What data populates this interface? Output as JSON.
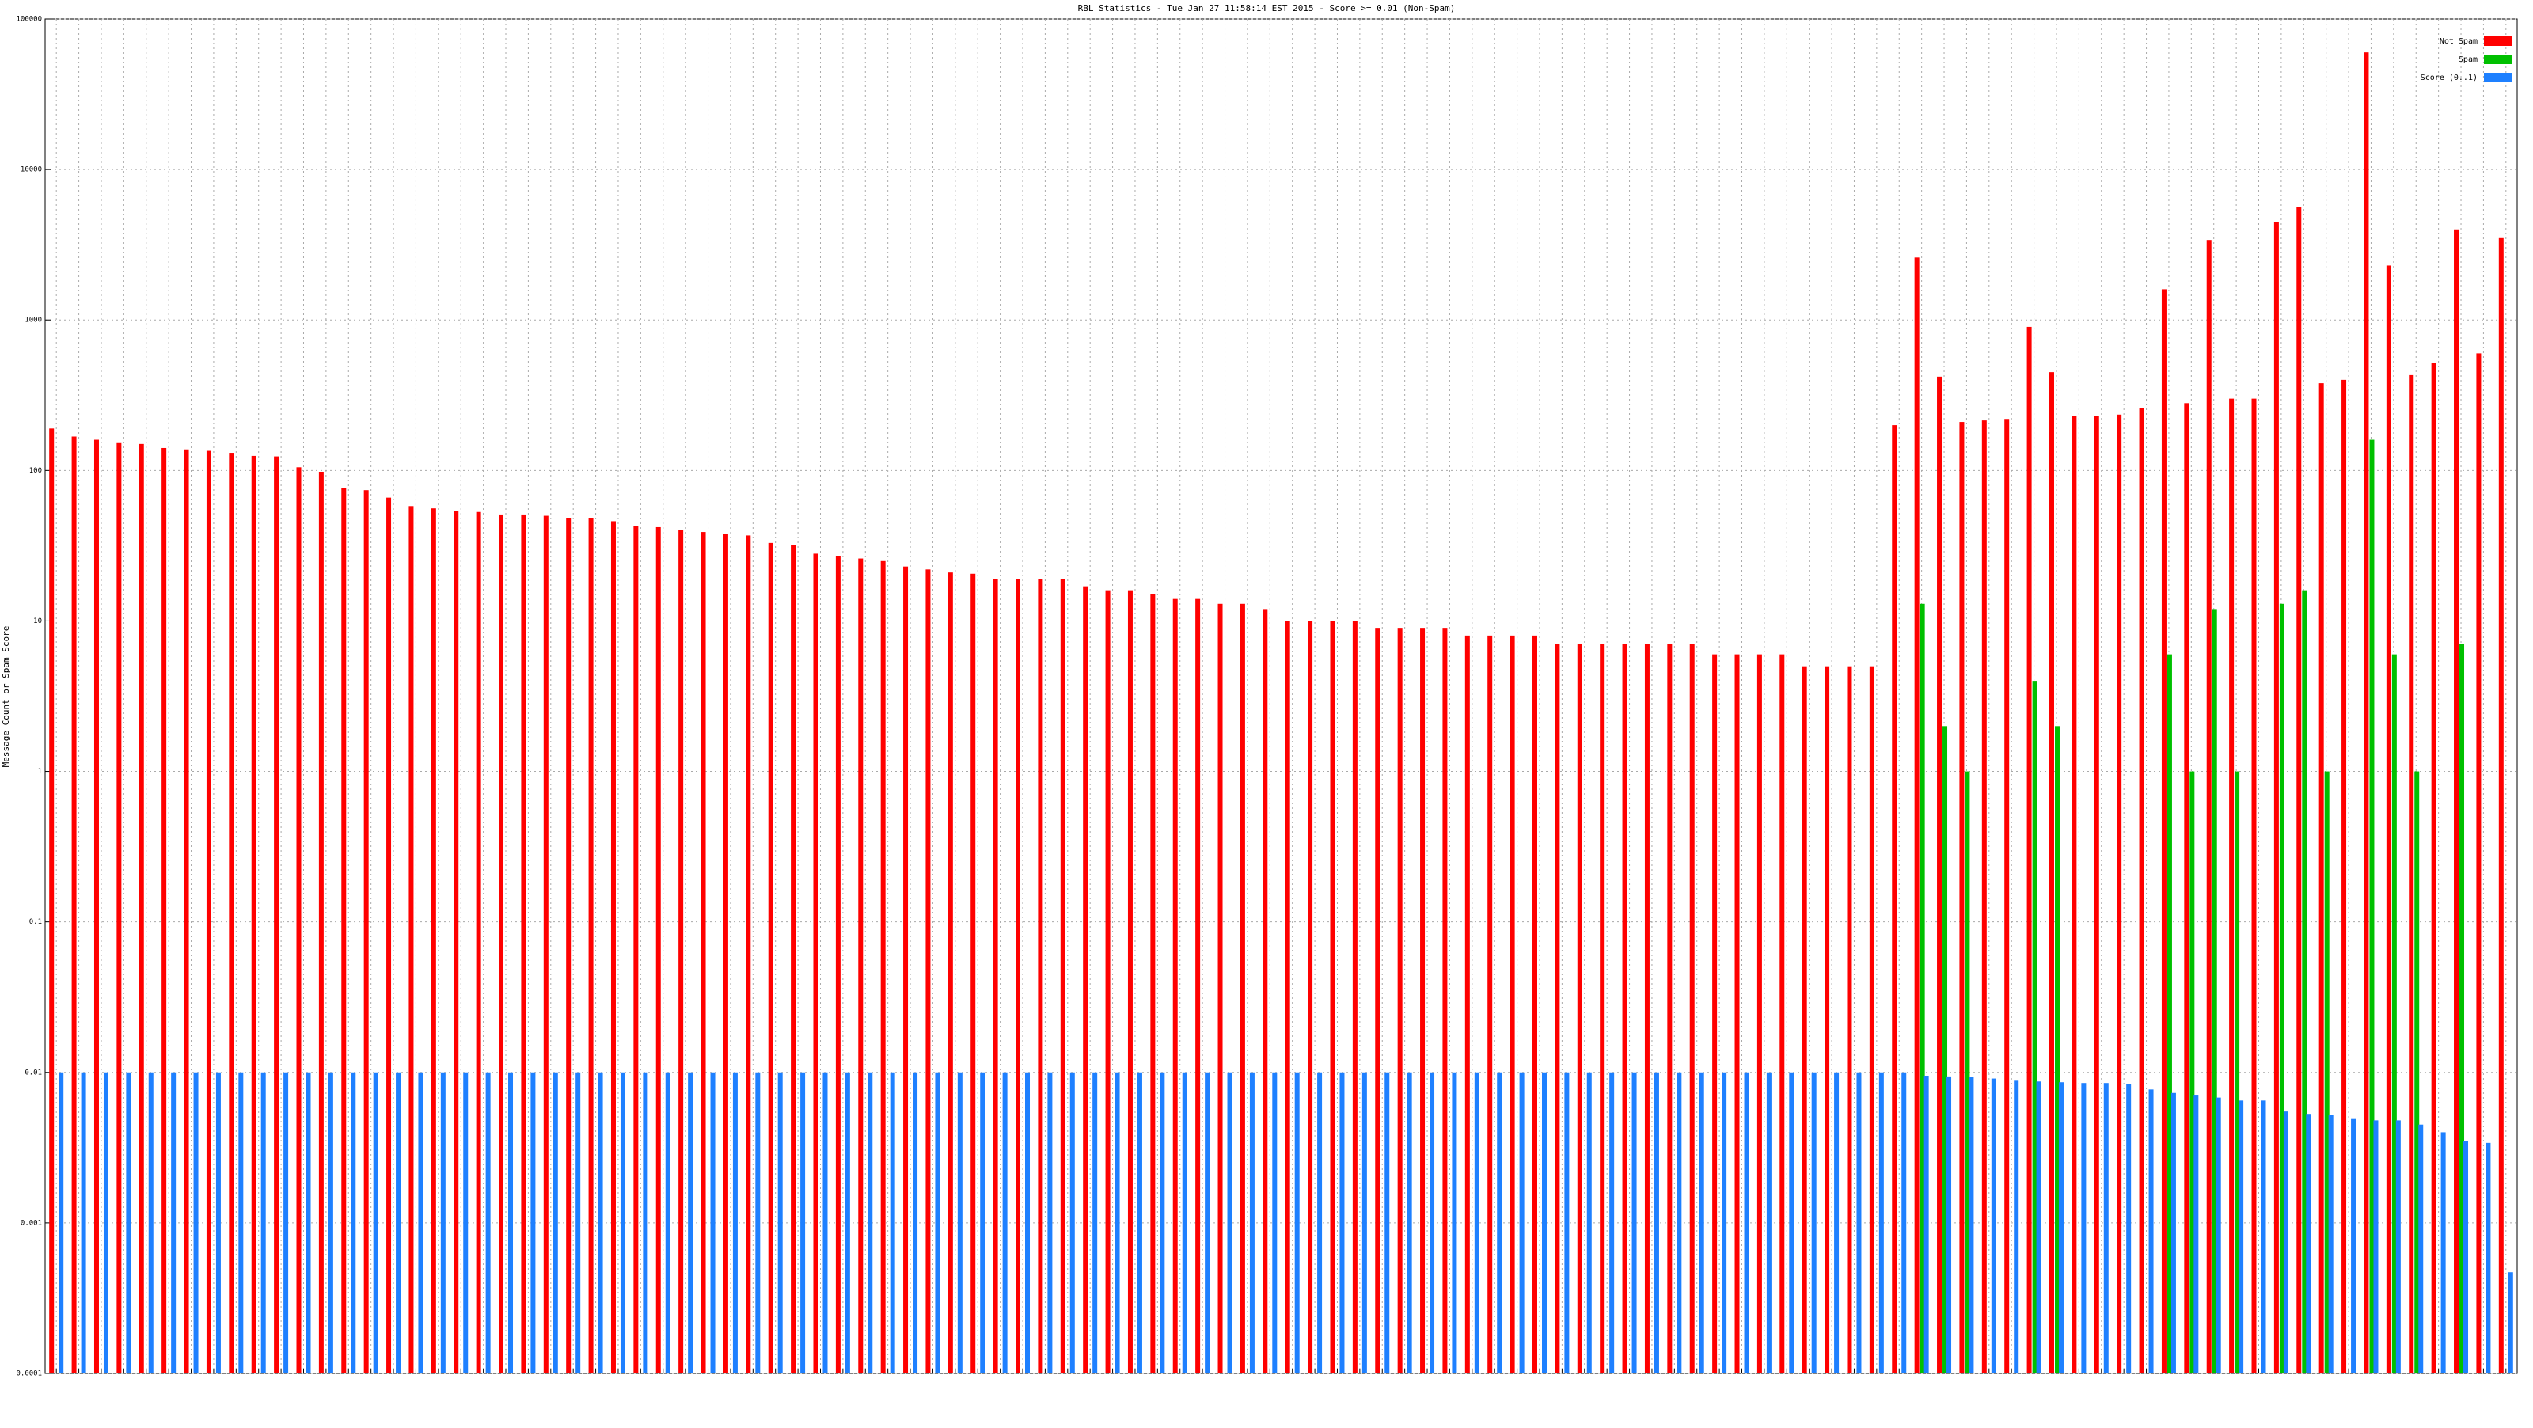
{
  "chart_data": {
    "type": "bar",
    "title": "RBL Statistics - Tue Jan 27 11:58:14 EST 2015 - Score >= 0.01 (Non-Spam)",
    "y_label": "Message Count or Spam Score",
    "log_scale": true,
    "grid": true,
    "legend": "top-right",
    "ylim": [
      0.0001,
      100000
    ],
    "yticks": [
      0.0001,
      0.001,
      0.01,
      0.1,
      1,
      10,
      100,
      1000,
      10000,
      100000
    ],
    "categories": [
      null,
      null,
      null,
      null,
      null,
      null,
      null,
      null,
      null,
      null,
      null,
      null,
      null,
      null,
      null,
      null,
      null,
      null,
      null,
      null,
      null,
      null,
      null,
      null,
      null,
      null,
      null,
      null,
      null,
      null,
      null,
      null,
      null,
      null,
      null,
      null,
      null,
      null,
      null,
      null,
      null,
      null,
      null,
      null,
      null,
      null,
      null,
      null,
      null,
      null,
      null,
      null,
      null,
      null,
      null,
      null,
      null,
      null,
      null,
      null,
      null,
      null,
      null,
      null,
      null,
      null,
      null,
      null,
      null,
      null,
      null,
      null,
      null,
      null,
      null,
      null,
      null,
      null,
      null,
      null,
      null,
      null,
      null,
      null,
      null,
      null,
      null,
      null,
      null,
      null,
      null,
      null,
      null,
      null,
      null,
      null,
      null,
      null,
      null,
      null,
      null,
      null,
      null,
      null,
      null,
      null,
      null,
      null,
      null,
      null
    ],
    "series": [
      {
        "name": "Not Spam",
        "color": "#ff0000",
        "values": [
          190,
          168,
          160,
          152,
          150,
          141,
          138,
          135,
          131,
          125,
          124,
          105,
          98,
          76,
          74,
          66,
          58,
          56,
          54,
          53,
          51,
          51,
          50,
          48,
          48,
          46,
          43,
          42,
          40,
          39,
          38,
          37,
          33,
          32,
          28,
          27,
          26,
          25,
          23,
          22,
          21,
          20.6,
          19,
          19,
          19,
          19,
          17,
          16,
          16,
          15,
          14,
          14,
          13,
          13,
          12,
          10,
          10,
          10,
          10,
          9,
          9,
          9,
          9,
          8,
          8,
          8,
          8,
          7,
          7,
          7,
          7,
          7,
          7,
          7,
          6,
          6,
          6,
          6,
          5,
          5,
          5,
          5,
          200,
          2600,
          420,
          210,
          215,
          220,
          900,
          450,
          230,
          230,
          235,
          260,
          1600,
          280,
          3400,
          300,
          300,
          4500,
          5600,
          380,
          400,
          60000,
          2300,
          430,
          520,
          4000,
          600,
          3500
        ]
      },
      {
        "name": "Spam",
        "color": "#00c000",
        "values": [
          null,
          null,
          null,
          null,
          null,
          null,
          null,
          null,
          null,
          null,
          null,
          null,
          null,
          null,
          null,
          null,
          null,
          null,
          null,
          null,
          null,
          null,
          null,
          null,
          null,
          null,
          null,
          null,
          null,
          null,
          null,
          null,
          null,
          null,
          null,
          null,
          null,
          null,
          null,
          null,
          null,
          null,
          null,
          null,
          null,
          null,
          null,
          null,
          null,
          null,
          null,
          null,
          null,
          null,
          null,
          null,
          null,
          null,
          null,
          null,
          null,
          null,
          null,
          null,
          null,
          null,
          null,
          null,
          null,
          null,
          null,
          null,
          null,
          null,
          null,
          null,
          null,
          null,
          null,
          null,
          null,
          null,
          null,
          13,
          2,
          1,
          null,
          null,
          4,
          2,
          null,
          null,
          null,
          null,
          6,
          1,
          12,
          1,
          null,
          13,
          16,
          1,
          null,
          160,
          6,
          1,
          null,
          7,
          null,
          null
        ]
      },
      {
        "name": "Score (0..1)",
        "color": "#1e80ff",
        "values": [
          0.01,
          0.01,
          0.01,
          0.01,
          0.01,
          0.01,
          0.01,
          0.01,
          0.01,
          0.01,
          0.01,
          0.01,
          0.01,
          0.01,
          0.01,
          0.01,
          0.01,
          0.01,
          0.01,
          0.01,
          0.01,
          0.01,
          0.01,
          0.01,
          0.01,
          0.01,
          0.01,
          0.01,
          0.01,
          0.01,
          0.01,
          0.01,
          0.01,
          0.01,
          0.01,
          0.01,
          0.01,
          0.01,
          0.01,
          0.01,
          0.01,
          0.01,
          0.01,
          0.01,
          0.01,
          0.01,
          0.01,
          0.01,
          0.01,
          0.01,
          0.01,
          0.01,
          0.01,
          0.01,
          0.01,
          0.01,
          0.01,
          0.01,
          0.01,
          0.01,
          0.01,
          0.01,
          0.01,
          0.01,
          0.01,
          0.01,
          0.01,
          0.01,
          0.01,
          0.01,
          0.01,
          0.01,
          0.01,
          0.01,
          0.01,
          0.01,
          0.01,
          0.01,
          0.01,
          0.01,
          0.01,
          0.01,
          0.01,
          0.0095,
          0.0094,
          0.0093,
          0.0091,
          0.0088,
          0.0087,
          0.0086,
          0.0085,
          0.0085,
          0.0084,
          0.0077,
          0.0073,
          0.0071,
          0.0068,
          0.0065,
          0.0065,
          0.0055,
          0.0053,
          0.0052,
          0.0049,
          0.0048,
          0.0048,
          0.0045,
          0.004,
          0.0035,
          0.0034,
          0.00047
        ]
      }
    ]
  }
}
